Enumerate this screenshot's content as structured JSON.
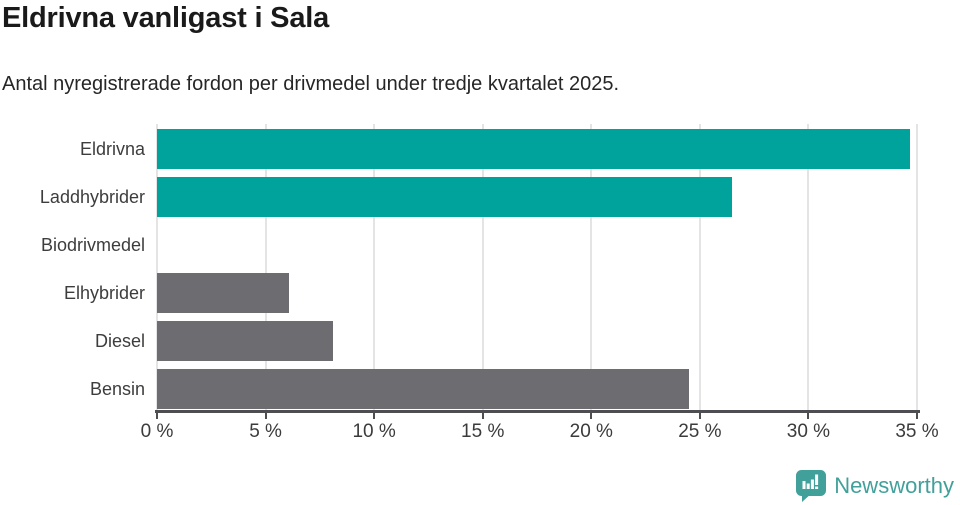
{
  "title": "Eldrivna vanligast i Sala",
  "subtitle": "Antal nyregistrerade fordon per drivmedel under tredje kvartalet 2025.",
  "chart_data": {
    "type": "bar",
    "orientation": "horizontal",
    "title": "Eldrivna vanligast i Sala",
    "xlabel": "",
    "ylabel": "",
    "categories": [
      "Eldrivna",
      "Laddhybrider",
      "Biodrivmedel",
      "Elhybrider",
      "Diesel",
      "Bensin"
    ],
    "values": [
      34.7,
      26.5,
      0,
      6.1,
      8.1,
      24.5
    ],
    "unit": "%",
    "xlim": [
      0,
      35
    ],
    "x_tick_labels": [
      "0 %",
      "5 %",
      "10 %",
      "15 %",
      "20 %",
      "25 %",
      "30 %",
      "35 %"
    ],
    "grid": true,
    "legend": false,
    "highlight_color": "#00a39b",
    "default_color": "#6d6d71",
    "bar_colors": [
      "#00a39b",
      "#00a39b",
      "#6d6d71",
      "#6d6d71",
      "#6d6d71",
      "#6d6d71"
    ]
  },
  "footer": {
    "brand": "Newsworthy",
    "brand_color": "#42a09a",
    "logo_icon": "bar-chart-speech-bubble-icon"
  }
}
